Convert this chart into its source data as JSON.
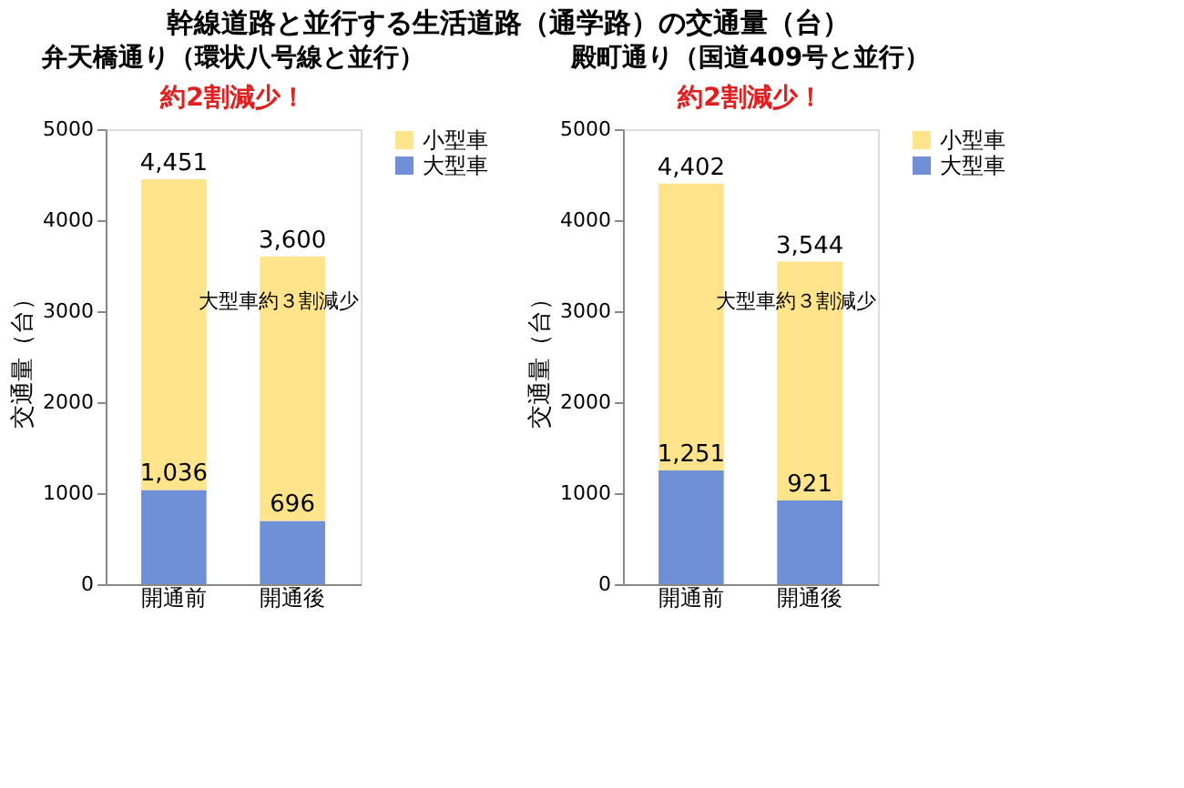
{
  "chart_data": [
    {
      "type": "other",
      "title": "幹線道路と並行する生活道路（通学路）の交通量（台）"
    },
    {
      "type": "bar",
      "title": "弁天橋通り（環状八号線と並行）",
      "ylabel": "交通量（台）",
      "categories": [
        "開通前",
        "開通後"
      ],
      "stacked": true,
      "ylim": [
        0,
        5000
      ],
      "yticks": [
        0,
        1000,
        2000,
        3000,
        4000,
        5000
      ],
      "legend": "right",
      "grid": false,
      "series": [
        {
          "name": "大型車",
          "color": "#6f8fd6",
          "values": [
            1036,
            696
          ],
          "value_labels": [
            "1,036",
            "696"
          ]
        },
        {
          "name": "小型車",
          "color": "#ffe48c",
          "values": [
            3415,
            2904
          ]
        }
      ],
      "totals": [
        "4,451",
        "3,600"
      ],
      "annotations": [
        "約2割減少！",
        "大型車約３割減少"
      ]
    },
    {
      "type": "bar",
      "title": "殿町通り（国道409号と並行）",
      "ylabel": "交通量（台）",
      "categories": [
        "開通前",
        "開通後"
      ],
      "stacked": true,
      "ylim": [
        0,
        5000
      ],
      "yticks": [
        0,
        1000,
        2000,
        3000,
        4000,
        5000
      ],
      "legend": "right",
      "grid": false,
      "series": [
        {
          "name": "大型車",
          "color": "#6f8fd6",
          "values": [
            1251,
            921
          ],
          "value_labels": [
            "1,251",
            "921"
          ]
        },
        {
          "name": "小型車",
          "color": "#ffe48c",
          "values": [
            3151,
            2623
          ]
        }
      ],
      "totals": [
        "4,402",
        "3,544"
      ],
      "annotations": [
        "約2割減少！",
        "大型車約３割減少"
      ]
    }
  ]
}
